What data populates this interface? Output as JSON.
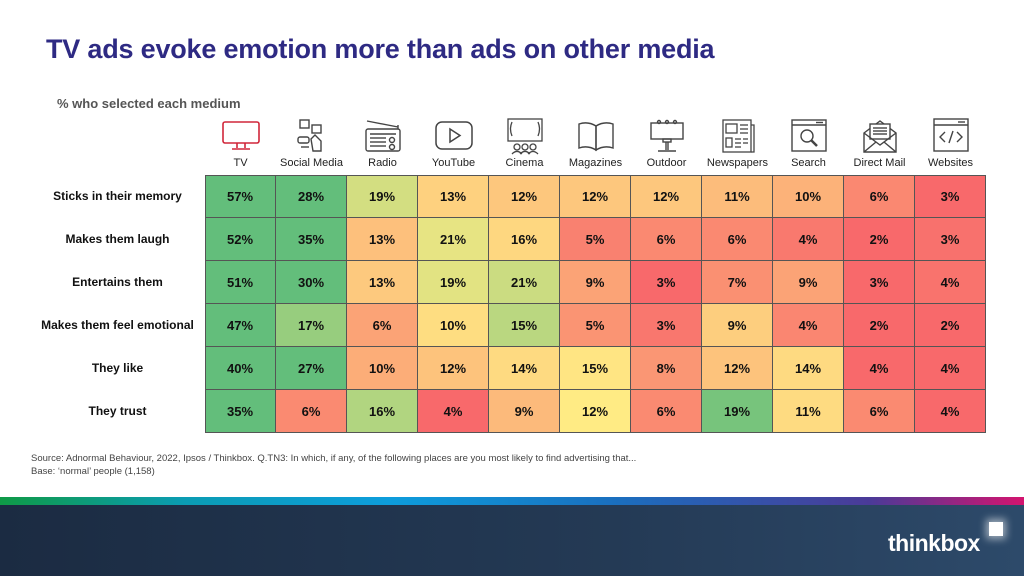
{
  "title": "TV ads evoke emotion more than ads on other media",
  "subtitle": "% who selected each medium",
  "source_line1": "Source: Adnormal Behaviour, 2022, Ipsos / Thinkbox. Q.TN3: In which, if any, of the following places are you most likely to find advertising that...",
  "source_line2": "Base: ‘normal’ people (1,158)",
  "logo_text": "thinkbox",
  "colors": {
    "title": "#2e2a83",
    "tv_icon": "#d0263a",
    "icon": "#444444",
    "scale_low": "#f8696b",
    "scale_mid": "#ffeb84",
    "scale_high": "#63be7b"
  },
  "columns": [
    {
      "label": "TV",
      "icon": "tv-icon"
    },
    {
      "label": "Social Media",
      "icon": "social-media-icon"
    },
    {
      "label": "Radio",
      "icon": "radio-icon"
    },
    {
      "label": "YouTube",
      "icon": "youtube-icon"
    },
    {
      "label": "Cinema",
      "icon": "cinema-icon"
    },
    {
      "label": "Magazines",
      "icon": "magazine-icon"
    },
    {
      "label": "Outdoor",
      "icon": "billboard-icon"
    },
    {
      "label": "Newspapers",
      "icon": "newspaper-icon"
    },
    {
      "label": "Search",
      "icon": "search-icon"
    },
    {
      "label": "Direct Mail",
      "icon": "mail-icon"
    },
    {
      "label": "Websites",
      "icon": "website-icon"
    }
  ],
  "chart_data": {
    "type": "heatmap",
    "title": "TV ads evoke emotion more than ads on other media",
    "subtitle": "% who selected each medium",
    "value_format": "percent",
    "columns": [
      "TV",
      "Social Media",
      "Radio",
      "YouTube",
      "Cinema",
      "Magazines",
      "Outdoor",
      "Newspapers",
      "Search",
      "Direct Mail",
      "Websites"
    ],
    "rows": [
      "Sticks in their memory",
      "Makes them laugh",
      "Entertains them",
      "Makes them feel emotional",
      "They like",
      "They trust"
    ],
    "values": [
      [
        57,
        28,
        19,
        13,
        12,
        12,
        12,
        11,
        10,
        6,
        3
      ],
      [
        52,
        35,
        13,
        21,
        16,
        5,
        6,
        6,
        4,
        2,
        3
      ],
      [
        51,
        30,
        13,
        19,
        21,
        9,
        3,
        7,
        9,
        3,
        4
      ],
      [
        47,
        17,
        6,
        10,
        15,
        5,
        3,
        9,
        4,
        2,
        2
      ],
      [
        40,
        27,
        10,
        12,
        14,
        15,
        8,
        12,
        14,
        4,
        4
      ],
      [
        35,
        6,
        16,
        4,
        9,
        12,
        6,
        19,
        11,
        6,
        4
      ]
    ],
    "color_scale": "per-row red-yellow-green (low-mid-high)"
  }
}
